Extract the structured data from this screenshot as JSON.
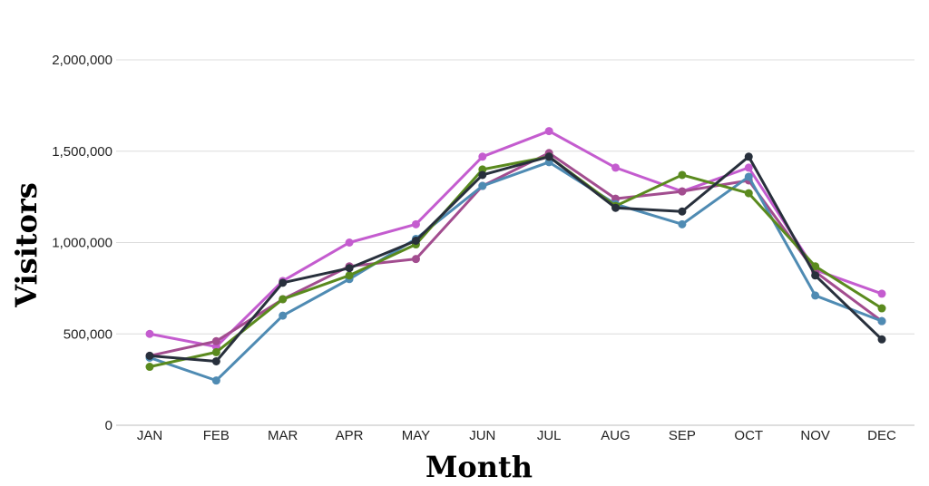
{
  "chart_data": {
    "type": "line",
    "xlabel": "Month",
    "ylabel": "Visitors",
    "categories": [
      "JAN",
      "FEB",
      "MAR",
      "APR",
      "MAY",
      "JUN",
      "JUL",
      "AUG",
      "SEP",
      "OCT",
      "NOV",
      "DEC"
    ],
    "ylim": [
      0,
      2000000
    ],
    "yticks": [
      0,
      500000,
      1000000,
      1500000,
      2000000
    ],
    "ytick_labels": [
      "0",
      "500,000",
      "1,000,000",
      "1,500,000",
      "2,000,000"
    ],
    "grid": "horizontal",
    "legend": "none",
    "series": [
      {
        "color": "#c45ccf",
        "values": [
          500000,
          430000,
          790000,
          1000000,
          1100000,
          1470000,
          1610000,
          1410000,
          1280000,
          1410000,
          850000,
          720000
        ]
      },
      {
        "color": "#a24d8f",
        "values": [
          380000,
          460000,
          690000,
          870000,
          910000,
          1310000,
          1490000,
          1240000,
          1280000,
          1340000,
          840000,
          570000
        ]
      },
      {
        "color": "#4f8bb3",
        "values": [
          370000,
          245000,
          600000,
          800000,
          1020000,
          1310000,
          1440000,
          1210000,
          1100000,
          1360000,
          710000,
          570000
        ]
      },
      {
        "color": "#5a8a1e",
        "values": [
          320000,
          400000,
          690000,
          820000,
          990000,
          1400000,
          1470000,
          1200000,
          1370000,
          1270000,
          870000,
          640000
        ]
      },
      {
        "color": "#28303c",
        "values": [
          380000,
          350000,
          780000,
          860000,
          1010000,
          1370000,
          1470000,
          1190000,
          1170000,
          1470000,
          820000,
          470000
        ]
      }
    ]
  }
}
